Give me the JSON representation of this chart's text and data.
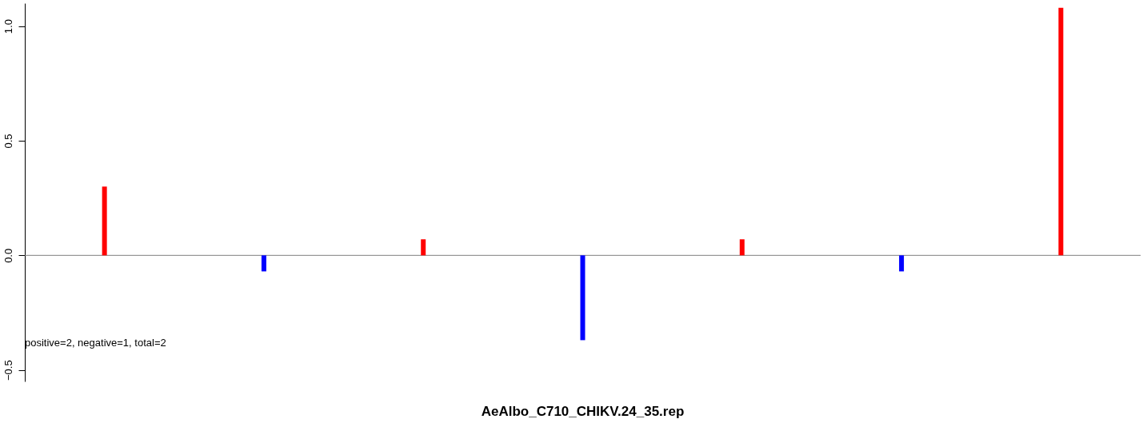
{
  "chart_data": {
    "type": "bar",
    "title": "AeAlbo_C710_CHIKV.24_35.rep",
    "categories": [
      null,
      null,
      null,
      null,
      null,
      null,
      null
    ],
    "values": [
      0.3,
      -0.07,
      0.07,
      -0.37,
      0.07,
      -0.07,
      1.08
    ],
    "colors": [
      "#ff0000",
      "#0000ff",
      "#ff0000",
      "#0000ff",
      "#ff0000",
      "#0000ff",
      "#ff0000"
    ],
    "ylim": [
      -0.55,
      1.1
    ],
    "yticks": [
      {
        "value": -0.5,
        "label": "−0.5"
      },
      {
        "value": 0,
        "label": "0.0"
      },
      {
        "value": 0.5,
        "label": "0.5"
      },
      {
        "value": 1,
        "label": "1.0"
      }
    ],
    "ref_lines": [
      {
        "axis": "y",
        "value": 0,
        "color": "#808080"
      }
    ],
    "annotations": [
      "positive=2, negative=1, total=2"
    ],
    "tick_labels": "y",
    "grid": false
  }
}
